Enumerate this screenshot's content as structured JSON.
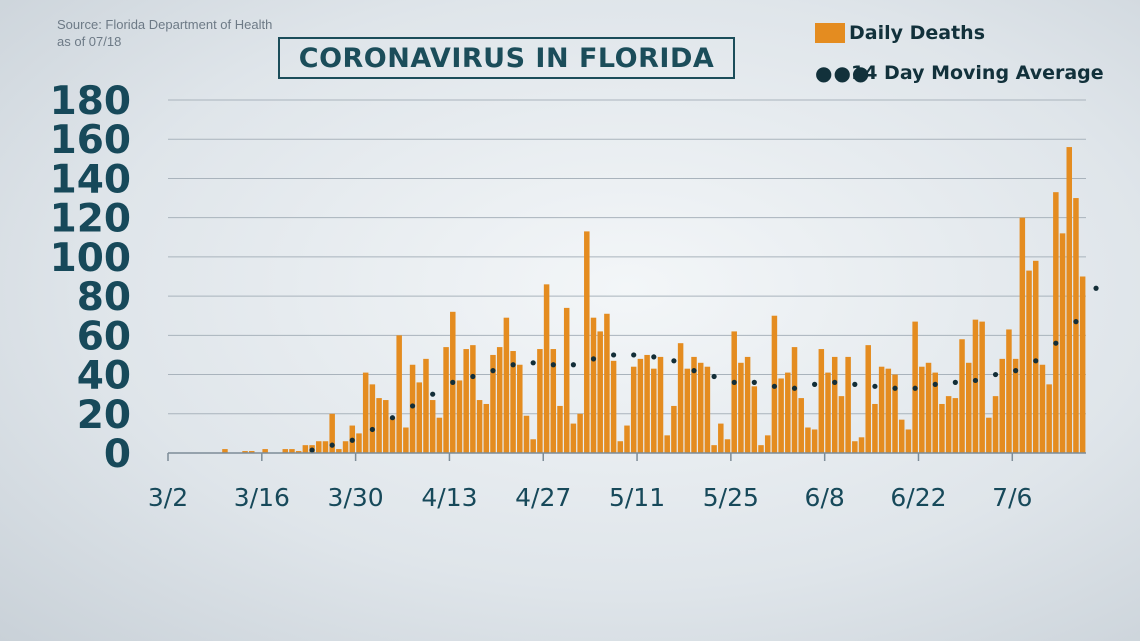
{
  "source": {
    "line1": "Source: Florida Department of Health",
    "line2": "as of 07/18"
  },
  "title": "CORONAVIRUS IN FLORIDA",
  "legend": {
    "bars": "Daily Deaths",
    "line": "14 Day Moving Average",
    "line_symbol": "●●●"
  },
  "colors": {
    "bar": "#e48c20",
    "line": "#132e38",
    "axis_text": "#17495a",
    "grid": "#a9b3bc"
  },
  "chart_data": {
    "type": "bar",
    "title": "CORONAVIRUS IN FLORIDA",
    "xlabel": "",
    "ylabel": "",
    "ylim": [
      0,
      180
    ],
    "yticks": [
      0,
      20,
      40,
      60,
      80,
      100,
      120,
      140,
      160,
      180
    ],
    "xticks": [
      "3/2",
      "3/16",
      "3/30",
      "4/13",
      "4/27",
      "5/11",
      "5/25",
      "6/8",
      "6/22",
      "7/6"
    ],
    "grid": true,
    "legend_position": "top-right",
    "start_date": "3/2",
    "end_date": "7/18",
    "series": [
      {
        "name": "Daily Deaths",
        "kind": "bar",
        "values": [
          0,
          0,
          0,
          0,
          0,
          0,
          0,
          0,
          2,
          0,
          0,
          1,
          1,
          0,
          2,
          0,
          0,
          2,
          2,
          1,
          4,
          4,
          6,
          6,
          20,
          2,
          6,
          14,
          10,
          41,
          35,
          28,
          27,
          18,
          60,
          13,
          45,
          36,
          48,
          27,
          18,
          54,
          72,
          37,
          53,
          55,
          27,
          25,
          50,
          54,
          69,
          52,
          45,
          19,
          7,
          53,
          86,
          53,
          24,
          74,
          15,
          20,
          113,
          69,
          62,
          71,
          47,
          6,
          14,
          44,
          48,
          50,
          43,
          49,
          9,
          24,
          56,
          43,
          49,
          46,
          44,
          4,
          15,
          7,
          62,
          46,
          49,
          34,
          4,
          9,
          70,
          38,
          41,
          54,
          28,
          13,
          12,
          53,
          41,
          49,
          29,
          49,
          6,
          8,
          55,
          25,
          44,
          43,
          40,
          17,
          12,
          67,
          44,
          46,
          41,
          25,
          29,
          28,
          58,
          46,
          68,
          67,
          18,
          29,
          48,
          63,
          48,
          120,
          93,
          98,
          45,
          35,
          133,
          112,
          156,
          130,
          90
        ]
      },
      {
        "name": "14 Day Moving Average",
        "kind": "line",
        "values": [
          null,
          null,
          null,
          null,
          null,
          null,
          null,
          null,
          null,
          null,
          null,
          null,
          null,
          null,
          null,
          null,
          null,
          null,
          null,
          null,
          1,
          1.5,
          2,
          3,
          4,
          4.5,
          5.5,
          6.5,
          8,
          10,
          12,
          14,
          16,
          18,
          20,
          22,
          24,
          26,
          28,
          30,
          32,
          34,
          36,
          37,
          38,
          39,
          40,
          41,
          42,
          43,
          44,
          45,
          46,
          46,
          46,
          45,
          45,
          45,
          45,
          45,
          45,
          46,
          47,
          48,
          49,
          50,
          50,
          50,
          50,
          50,
          50,
          49,
          49,
          48,
          48,
          47,
          46,
          44,
          42,
          41,
          40,
          39,
          38,
          37,
          36,
          36,
          36,
          36,
          35,
          35,
          34,
          34,
          33,
          33,
          33,
          34,
          35,
          36,
          36,
          36,
          36,
          35,
          35,
          35,
          35,
          34,
          34,
          33,
          33,
          33,
          33,
          33,
          34,
          34,
          35,
          35,
          35,
          36,
          36,
          36,
          37,
          38,
          39,
          40,
          41,
          41,
          42,
          43,
          45,
          47,
          50,
          53,
          56,
          59,
          62,
          67,
          72,
          78,
          84
        ]
      }
    ]
  }
}
